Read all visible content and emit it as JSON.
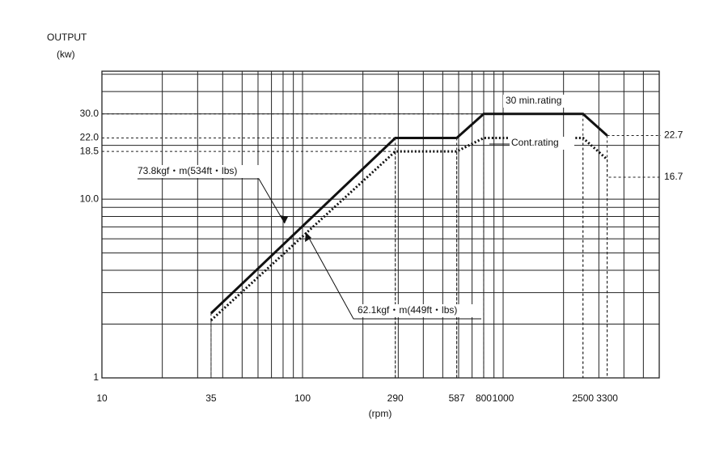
{
  "chart_data": {
    "type": "line",
    "y_label_line1": "OUTPUT",
    "y_label_line2": "(kw)",
    "x_label": "(rpm)",
    "x": [
      35,
      290,
      587,
      800,
      2500,
      3300
    ],
    "series": [
      {
        "name": "30 min.rating",
        "color": "#111111",
        "style": "solid",
        "values": [
          2.3,
          22,
          22,
          30,
          30,
          22.7
        ]
      },
      {
        "name": "Cont.rating",
        "color": "#111111",
        "style": "dotted",
        "values": [
          2.1,
          18.5,
          18.5,
          22,
          22,
          16.7
        ]
      }
    ],
    "annotations": [
      "73.8kgf・m(534ft・lbs)",
      "62.1kgf・m(449ft・lbs)"
    ],
    "xlog": true,
    "ylog": true,
    "xlim": [
      10,
      6000
    ],
    "ylim": [
      1,
      52
    ],
    "xticks": [
      10,
      35,
      100,
      290,
      587,
      800,
      1000,
      2500,
      3300
    ],
    "yticks": [
      1,
      {
        "value": 10,
        "label": "10.0"
      },
      18.5,
      {
        "value": 22,
        "label": "22.0"
      },
      {
        "value": 30,
        "label": "30.0"
      }
    ],
    "grid": true,
    "minor_grid": true
  }
}
